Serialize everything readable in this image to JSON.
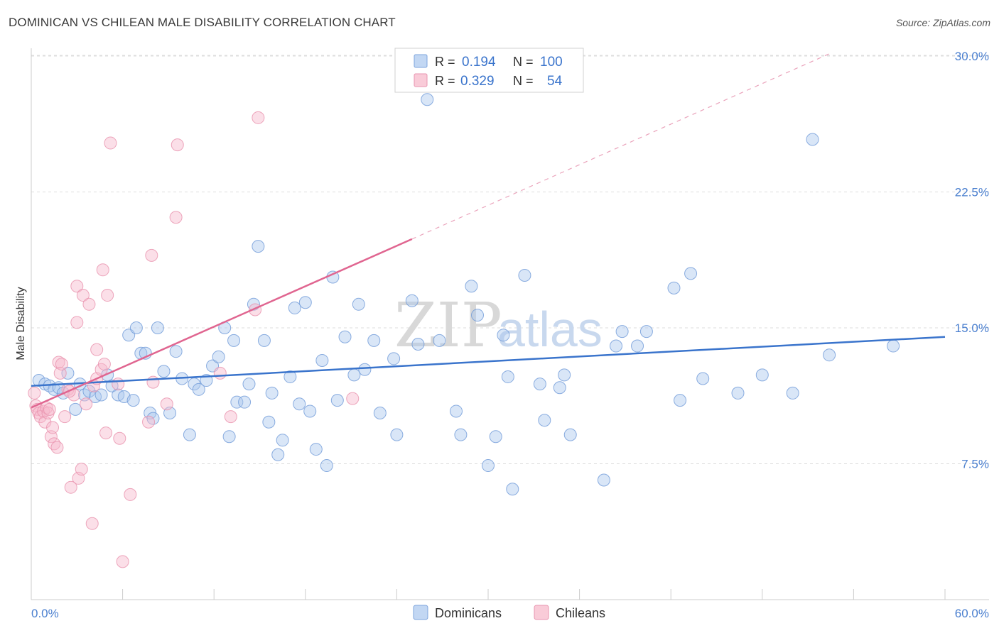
{
  "header": {
    "title": "DOMINICAN VS CHILEAN MALE DISABILITY CORRELATION CHART",
    "source": "Source: ZipAtlas.com"
  },
  "watermark": {
    "part1": "ZIP",
    "part2": "atlas"
  },
  "colors": {
    "blue": "#3a74cc",
    "blue_fill": "#aac8ee",
    "pink": "#e06590",
    "pink_fill": "#f6b8cb",
    "grid": "#dddddd",
    "tick_text": "#4a7fcf"
  },
  "legend": {
    "rows": [
      {
        "r_label": "R =",
        "r_value": "0.194",
        "n_label": "N =",
        "n_value": "100",
        "color": "#3a74cc"
      },
      {
        "r_label": "R =",
        "r_value": "0.329",
        "n_label": "N =",
        "n_value": "54",
        "color": "#e06590"
      }
    ]
  },
  "chart_data": {
    "type": "scatter",
    "title": "DOMINICAN VS CHILEAN MALE DISABILITY CORRELATION CHART",
    "xlabel": "",
    "ylabel": "Male Disability",
    "xlim": [
      0,
      60
    ],
    "ylim": [
      0,
      31
    ],
    "x_tick_labels": [
      "0.0%",
      "60.0%"
    ],
    "y_ticks": [
      7.5,
      15.0,
      22.5,
      30.0
    ],
    "y_tick_labels": [
      "7.5%",
      "15.0%",
      "22.5%",
      "30.0%"
    ],
    "grid": "horizontal dashed",
    "legend_position": "top-center",
    "series": [
      {
        "name": "Dominicans",
        "color": "#3a74cc",
        "r": 0.194,
        "n": 100,
        "trend": {
          "x": [
            0,
            60
          ],
          "y": [
            11.8,
            14.5
          ],
          "dashed_after": null
        },
        "points": [
          [
            0.5,
            12.1
          ],
          [
            0.9,
            11.9
          ],
          [
            1.2,
            11.8
          ],
          [
            1.5,
            11.6
          ],
          [
            1.8,
            11.7
          ],
          [
            2.1,
            11.4
          ],
          [
            2.4,
            12.5
          ],
          [
            2.9,
            10.5
          ],
          [
            3.2,
            11.9
          ],
          [
            3.5,
            11.3
          ],
          [
            3.8,
            11.5
          ],
          [
            4.2,
            11.2
          ],
          [
            4.6,
            11.3
          ],
          [
            5.0,
            12.4
          ],
          [
            5.3,
            11.8
          ],
          [
            5.7,
            11.3
          ],
          [
            6.1,
            11.2
          ],
          [
            6.4,
            14.6
          ],
          [
            6.7,
            11.0
          ],
          [
            6.9,
            15.0
          ],
          [
            7.2,
            13.6
          ],
          [
            7.5,
            13.6
          ],
          [
            7.8,
            10.3
          ],
          [
            8.0,
            10.0
          ],
          [
            8.3,
            15.0
          ],
          [
            8.7,
            12.6
          ],
          [
            9.1,
            10.3
          ],
          [
            9.5,
            13.7
          ],
          [
            9.9,
            12.2
          ],
          [
            10.4,
            9.1
          ],
          [
            10.7,
            11.9
          ],
          [
            11.0,
            11.6
          ],
          [
            11.5,
            12.1
          ],
          [
            11.9,
            12.9
          ],
          [
            12.3,
            13.4
          ],
          [
            12.7,
            15.0
          ],
          [
            13.0,
            9.0
          ],
          [
            13.3,
            14.3
          ],
          [
            13.5,
            10.9
          ],
          [
            14.0,
            10.9
          ],
          [
            14.3,
            11.9
          ],
          [
            14.6,
            16.3
          ],
          [
            14.9,
            19.5
          ],
          [
            15.3,
            14.3
          ],
          [
            15.6,
            9.8
          ],
          [
            15.8,
            11.4
          ],
          [
            16.2,
            8.0
          ],
          [
            16.5,
            8.8
          ],
          [
            17.0,
            12.3
          ],
          [
            17.3,
            16.1
          ],
          [
            17.6,
            10.8
          ],
          [
            18.0,
            16.4
          ],
          [
            18.3,
            10.4
          ],
          [
            18.7,
            8.3
          ],
          [
            19.1,
            13.2
          ],
          [
            19.4,
            7.4
          ],
          [
            19.8,
            17.8
          ],
          [
            20.1,
            11.0
          ],
          [
            20.6,
            14.5
          ],
          [
            21.2,
            12.4
          ],
          [
            21.5,
            16.3
          ],
          [
            21.9,
            12.7
          ],
          [
            22.5,
            14.3
          ],
          [
            22.9,
            10.3
          ],
          [
            23.8,
            13.3
          ],
          [
            24.0,
            9.1
          ],
          [
            25.0,
            16.5
          ],
          [
            25.4,
            14.1
          ],
          [
            26.0,
            27.6
          ],
          [
            26.8,
            14.3
          ],
          [
            27.9,
            10.4
          ],
          [
            28.2,
            9.1
          ],
          [
            28.9,
            17.3
          ],
          [
            29.3,
            15.7
          ],
          [
            30.0,
            7.4
          ],
          [
            30.5,
            9.0
          ],
          [
            31.0,
            14.6
          ],
          [
            31.3,
            12.3
          ],
          [
            31.6,
            6.1
          ],
          [
            32.4,
            17.9
          ],
          [
            33.4,
            11.9
          ],
          [
            33.7,
            9.9
          ],
          [
            34.7,
            11.7
          ],
          [
            35.0,
            12.4
          ],
          [
            35.4,
            9.1
          ],
          [
            37.6,
            6.6
          ],
          [
            38.4,
            14.0
          ],
          [
            38.8,
            14.8
          ],
          [
            39.8,
            14.0
          ],
          [
            40.4,
            14.8
          ],
          [
            42.2,
            17.2
          ],
          [
            42.6,
            11.0
          ],
          [
            43.3,
            18.0
          ],
          [
            44.1,
            12.2
          ],
          [
            46.4,
            11.4
          ],
          [
            48.0,
            12.4
          ],
          [
            50.0,
            11.4
          ],
          [
            51.3,
            25.4
          ],
          [
            52.4,
            13.5
          ],
          [
            56.6,
            14.0
          ]
        ]
      },
      {
        "name": "Chileans",
        "color": "#e06590",
        "r": 0.329,
        "n": 54,
        "trend": {
          "x": [
            0,
            25
          ],
          "y": [
            10.6,
            19.9
          ],
          "dashed_to": [
            52.6,
            30.2
          ]
        },
        "points": [
          [
            0.2,
            11.4
          ],
          [
            0.3,
            10.7
          ],
          [
            0.4,
            10.5
          ],
          [
            0.5,
            10.3
          ],
          [
            0.6,
            10.1
          ],
          [
            0.8,
            10.4
          ],
          [
            0.9,
            9.8
          ],
          [
            1.0,
            10.6
          ],
          [
            1.1,
            10.3
          ],
          [
            1.2,
            10.5
          ],
          [
            1.3,
            9.0
          ],
          [
            1.4,
            9.5
          ],
          [
            1.5,
            8.6
          ],
          [
            1.7,
            8.4
          ],
          [
            1.8,
            13.1
          ],
          [
            1.9,
            12.5
          ],
          [
            2.0,
            13.0
          ],
          [
            2.2,
            10.1
          ],
          [
            2.4,
            11.6
          ],
          [
            2.6,
            6.2
          ],
          [
            2.8,
            11.3
          ],
          [
            3.0,
            15.3
          ],
          [
            3.0,
            17.3
          ],
          [
            3.1,
            6.7
          ],
          [
            3.3,
            7.2
          ],
          [
            3.4,
            16.8
          ],
          [
            3.6,
            10.8
          ],
          [
            3.8,
            16.3
          ],
          [
            4.0,
            4.2
          ],
          [
            4.1,
            11.8
          ],
          [
            4.3,
            12.2
          ],
          [
            4.3,
            13.8
          ],
          [
            4.6,
            12.7
          ],
          [
            4.7,
            18.2
          ],
          [
            4.8,
            13.0
          ],
          [
            4.9,
            9.2
          ],
          [
            5.0,
            16.8
          ],
          [
            5.2,
            25.2
          ],
          [
            5.7,
            11.9
          ],
          [
            5.8,
            8.9
          ],
          [
            6.0,
            2.1
          ],
          [
            6.5,
            5.8
          ],
          [
            7.7,
            9.8
          ],
          [
            7.9,
            19.0
          ],
          [
            8.0,
            12.0
          ],
          [
            8.9,
            10.8
          ],
          [
            9.5,
            21.1
          ],
          [
            9.6,
            25.1
          ],
          [
            12.4,
            12.5
          ],
          [
            13.1,
            10.1
          ],
          [
            14.7,
            16.0
          ],
          [
            14.9,
            26.6
          ],
          [
            21.1,
            11.1
          ],
          [
            2.5,
            11.5
          ]
        ]
      }
    ]
  },
  "axes": {
    "y_label": "Male Disability",
    "x_min_label": "0.0%",
    "x_max_label": "60.0%",
    "y_tick_labels": [
      "30.0%",
      "22.5%",
      "15.0%",
      "7.5%"
    ]
  },
  "bottom_legend": {
    "items": [
      {
        "label": "Dominicans",
        "color": "#3a74cc"
      },
      {
        "label": "Chileans",
        "color": "#e06590"
      }
    ]
  }
}
